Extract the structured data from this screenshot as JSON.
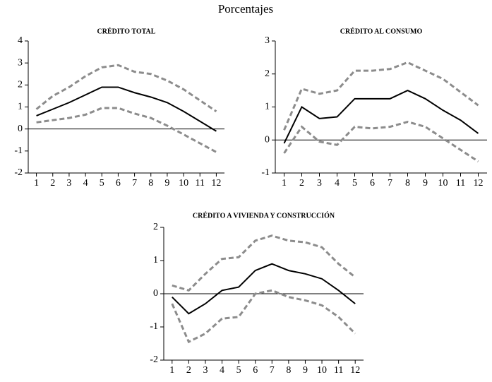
{
  "title": "Porcentajes",
  "chart_data": [
    {
      "type": "line",
      "title": "CRÉDITO TOTAL",
      "x": [
        1,
        2,
        3,
        4,
        5,
        6,
        7,
        8,
        9,
        10,
        11,
        12
      ],
      "xlim": [
        0.5,
        12.5
      ],
      "xticks": [
        1,
        2,
        3,
        4,
        5,
        6,
        7,
        8,
        9,
        10,
        11,
        12
      ],
      "ylim": [
        -2,
        4
      ],
      "yticks": [
        -2,
        -1,
        0,
        1,
        2,
        3,
        4
      ],
      "series": [
        {
          "color": "#000000",
          "dashed": false,
          "values": [
            0.6,
            0.9,
            1.2,
            1.55,
            1.9,
            1.9,
            1.65,
            1.45,
            1.2,
            0.8,
            0.35,
            -0.1
          ]
        },
        {
          "color": "#8c8c8c",
          "dashed": true,
          "values": [
            0.9,
            1.5,
            1.9,
            2.4,
            2.8,
            2.9,
            2.6,
            2.5,
            2.2,
            1.8,
            1.3,
            0.8
          ]
        },
        {
          "color": "#8c8c8c",
          "dashed": true,
          "values": [
            0.3,
            0.4,
            0.5,
            0.65,
            0.95,
            0.95,
            0.7,
            0.5,
            0.15,
            -0.25,
            -0.65,
            -1.05
          ]
        }
      ]
    },
    {
      "type": "line",
      "title": "CRÉDITO AL CONSUMO",
      "x": [
        1,
        2,
        3,
        4,
        5,
        6,
        7,
        8,
        9,
        10,
        11,
        12
      ],
      "xlim": [
        0.5,
        12.5
      ],
      "xticks": [
        1,
        2,
        3,
        4,
        5,
        6,
        7,
        8,
        9,
        10,
        11,
        12
      ],
      "ylim": [
        -1,
        3
      ],
      "yticks": [
        -1,
        0,
        1,
        2,
        3
      ],
      "series": [
        {
          "color": "#000000",
          "dashed": false,
          "values": [
            -0.1,
            1.0,
            0.65,
            0.7,
            1.25,
            1.25,
            1.25,
            1.5,
            1.25,
            0.9,
            0.6,
            0.2
          ]
        },
        {
          "color": "#8c8c8c",
          "dashed": true,
          "values": [
            0.3,
            1.55,
            1.4,
            1.5,
            2.1,
            2.1,
            2.15,
            2.35,
            2.1,
            1.85,
            1.45,
            1.05
          ]
        },
        {
          "color": "#8c8c8c",
          "dashed": true,
          "values": [
            -0.4,
            0.4,
            -0.05,
            -0.15,
            0.4,
            0.35,
            0.4,
            0.55,
            0.4,
            0.05,
            -0.3,
            -0.65
          ]
        }
      ]
    },
    {
      "type": "line",
      "title": "CRÉDITO A VIVIENDA Y CONSTRUCCIÓN",
      "x": [
        1,
        2,
        3,
        4,
        5,
        6,
        7,
        8,
        9,
        10,
        11,
        12
      ],
      "xlim": [
        0.5,
        12.5
      ],
      "xticks": [
        1,
        2,
        3,
        4,
        5,
        6,
        7,
        8,
        9,
        10,
        11,
        12
      ],
      "ylim": [
        -2,
        2
      ],
      "yticks": [
        -2,
        -1,
        0,
        1,
        2
      ],
      "series": [
        {
          "color": "#000000",
          "dashed": false,
          "values": [
            -0.1,
            -0.6,
            -0.3,
            0.1,
            0.2,
            0.7,
            0.9,
            0.7,
            0.6,
            0.45,
            0.1,
            -0.3
          ]
        },
        {
          "color": "#8c8c8c",
          "dashed": true,
          "values": [
            0.25,
            0.1,
            0.6,
            1.05,
            1.1,
            1.6,
            1.75,
            1.6,
            1.55,
            1.4,
            0.9,
            0.5
          ]
        },
        {
          "color": "#8c8c8c",
          "dashed": true,
          "values": [
            -0.3,
            -1.45,
            -1.2,
            -0.75,
            -0.7,
            0.0,
            0.1,
            -0.1,
            -0.2,
            -0.35,
            -0.7,
            -1.2
          ]
        }
      ]
    }
  ]
}
